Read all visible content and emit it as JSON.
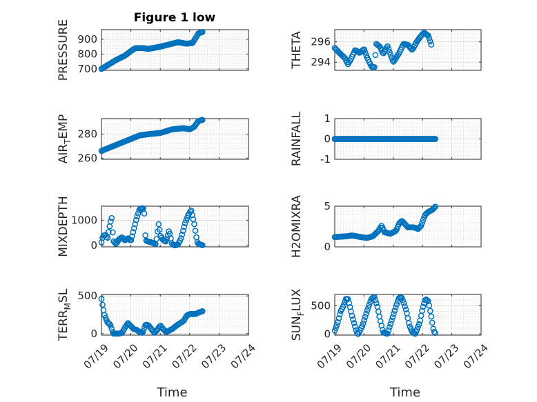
{
  "figure": {
    "title": "Figure 1 low"
  },
  "x_tick_labels": [
    "07/19",
    "07/20",
    "07/21",
    "07/22",
    "07/23",
    "07/24"
  ],
  "x_label": "Time",
  "marker_color": "#0072BD",
  "chart_data": [
    {
      "type": "scatter",
      "ylabel": "PRESSURE",
      "ylim": [
        690,
        965
      ],
      "yticks": [
        700,
        800,
        900
      ],
      "xlim": [
        0,
        5
      ],
      "keyframes": [
        [
          0,
          700
        ],
        [
          0.25,
          730
        ],
        [
          0.5,
          760
        ],
        [
          0.8,
          790
        ],
        [
          1.0,
          820
        ],
        [
          1.15,
          840
        ],
        [
          1.4,
          840
        ],
        [
          1.6,
          835
        ],
        [
          2.0,
          850
        ],
        [
          2.3,
          865
        ],
        [
          2.6,
          880
        ],
        [
          2.9,
          870
        ],
        [
          3.1,
          875
        ],
        [
          3.3,
          940
        ],
        [
          3.45,
          950
        ]
      ]
    },
    {
      "type": "scatter",
      "ylabel": "THETA",
      "ylim": [
        293.2,
        297.2
      ],
      "yticks": [
        294,
        296
      ],
      "xlim": [
        0,
        5
      ],
      "keyframes": [
        [
          0,
          295.4
        ],
        [
          0.2,
          294.8
        ],
        [
          0.35,
          294.4
        ],
        [
          0.45,
          293.8
        ],
        [
          0.55,
          294.3
        ],
        [
          0.7,
          295.2
        ],
        [
          0.85,
          294.9
        ],
        [
          1.0,
          295.3
        ],
        [
          1.1,
          294.5
        ],
        [
          1.25,
          293.6
        ],
        [
          1.35,
          293.4
        ],
        [
          1.42,
          295.8
        ],
        [
          1.55,
          295.5
        ],
        [
          1.65,
          294.8
        ],
        [
          1.8,
          295.6
        ],
        [
          1.9,
          294.8
        ],
        [
          2.0,
          294.0
        ],
        [
          2.2,
          294.9
        ],
        [
          2.35,
          295.8
        ],
        [
          2.5,
          295.7
        ],
        [
          2.65,
          295.2
        ],
        [
          2.8,
          296.0
        ],
        [
          2.95,
          296.6
        ],
        [
          3.05,
          296.9
        ],
        [
          3.2,
          296.6
        ],
        [
          3.3,
          295.7
        ]
      ]
    },
    {
      "type": "scatter",
      "ylabel": "AIR_TEMP",
      "ylim": [
        259,
        293
      ],
      "yticks": [
        260,
        280
      ],
      "xlim": [
        0,
        5
      ],
      "keyframes": [
        [
          0,
          266
        ],
        [
          0.3,
          269
        ],
        [
          0.7,
          273
        ],
        [
          1.0,
          276
        ],
        [
          1.3,
          279
        ],
        [
          1.6,
          280
        ],
        [
          2.0,
          281
        ],
        [
          2.4,
          284
        ],
        [
          2.8,
          285
        ],
        [
          3.0,
          284
        ],
        [
          3.15,
          286
        ],
        [
          3.3,
          291
        ],
        [
          3.45,
          292
        ]
      ]
    },
    {
      "type": "scatter",
      "ylabel": "RAINFALL",
      "ylim": [
        -1,
        1
      ],
      "yticks": [
        -1,
        0,
        1
      ],
      "xlim": [
        0,
        5
      ],
      "keyframes": [
        [
          0,
          0
        ],
        [
          3.45,
          0
        ]
      ]
    },
    {
      "type": "scatter",
      "ylabel": "MIXDEPTH",
      "ylim": [
        -60,
        1560
      ],
      "yticks": [
        0,
        1000
      ],
      "xlim": [
        0,
        5
      ],
      "keyframes": [
        [
          0,
          120
        ],
        [
          0.05,
          380
        ],
        [
          0.15,
          420
        ],
        [
          0.2,
          250
        ],
        [
          0.3,
          900
        ],
        [
          0.35,
          1100
        ],
        [
          0.4,
          180
        ],
        [
          0.5,
          50
        ],
        [
          0.6,
          250
        ],
        [
          0.7,
          320
        ],
        [
          0.8,
          200
        ],
        [
          0.9,
          280
        ],
        [
          1.0,
          180
        ],
        [
          1.05,
          400
        ],
        [
          1.2,
          1100
        ],
        [
          1.3,
          1450
        ],
        [
          1.4,
          1480
        ],
        [
          1.45,
          1450
        ],
        [
          1.5,
          200
        ],
        [
          1.6,
          150
        ],
        [
          1.75,
          100
        ],
        [
          1.85,
          50
        ],
        [
          1.95,
          900
        ],
        [
          2.0,
          400
        ],
        [
          2.1,
          200
        ],
        [
          2.2,
          150
        ],
        [
          2.3,
          600
        ],
        [
          2.4,
          50
        ],
        [
          2.5,
          0
        ],
        [
          2.6,
          30
        ],
        [
          2.7,
          250
        ],
        [
          2.85,
          900
        ],
        [
          2.95,
          1200
        ],
        [
          3.05,
          1400
        ],
        [
          3.15,
          900
        ],
        [
          3.25,
          150
        ],
        [
          3.3,
          60
        ],
        [
          3.45,
          0
        ]
      ]
    },
    {
      "type": "scatter",
      "ylabel": "H2OMIXRA",
      "ylim": [
        0,
        5
      ],
      "yticks": [
        0,
        5
      ],
      "xlim": [
        0,
        5
      ],
      "keyframes": [
        [
          0,
          1.2
        ],
        [
          0.4,
          1.3
        ],
        [
          0.6,
          1.4
        ],
        [
          0.9,
          1.2
        ],
        [
          1.1,
          1.1
        ],
        [
          1.3,
          1.3
        ],
        [
          1.5,
          2.0
        ],
        [
          1.6,
          2.6
        ],
        [
          1.7,
          1.8
        ],
        [
          1.9,
          1.6
        ],
        [
          2.1,
          2.0
        ],
        [
          2.2,
          2.9
        ],
        [
          2.3,
          3.2
        ],
        [
          2.5,
          2.4
        ],
        [
          2.7,
          2.4
        ],
        [
          2.85,
          2.2
        ],
        [
          2.95,
          2.6
        ],
        [
          3.05,
          3.6
        ],
        [
          3.1,
          4.0
        ],
        [
          3.2,
          4.3
        ],
        [
          3.35,
          4.6
        ],
        [
          3.45,
          5.0
        ]
      ]
    },
    {
      "type": "scatter",
      "ylabel": "TERR_MSL",
      "ylim": [
        -20,
        520
      ],
      "yticks": [
        0,
        500
      ],
      "xlim": [
        0,
        5
      ],
      "keyframes": [
        [
          0,
          460
        ],
        [
          0.05,
          350
        ],
        [
          0.1,
          250
        ],
        [
          0.2,
          150
        ],
        [
          0.3,
          120
        ],
        [
          0.35,
          60
        ],
        [
          0.4,
          0
        ],
        [
          0.5,
          0
        ],
        [
          0.6,
          0
        ],
        [
          0.7,
          10
        ],
        [
          0.8,
          80
        ],
        [
          0.9,
          140
        ],
        [
          1.0,
          100
        ],
        [
          1.1,
          60
        ],
        [
          1.2,
          50
        ],
        [
          1.3,
          20
        ],
        [
          1.4,
          10
        ],
        [
          1.5,
          120
        ],
        [
          1.6,
          110
        ],
        [
          1.7,
          60
        ],
        [
          1.8,
          10
        ],
        [
          1.9,
          50
        ],
        [
          2.0,
          110
        ],
        [
          2.1,
          60
        ],
        [
          2.2,
          20
        ],
        [
          2.4,
          60
        ],
        [
          2.6,
          120
        ],
        [
          2.8,
          170
        ],
        [
          2.9,
          240
        ],
        [
          3.0,
          260
        ],
        [
          3.2,
          260
        ],
        [
          3.3,
          280
        ],
        [
          3.45,
          300
        ]
      ]
    },
    {
      "type": "scatter",
      "ylabel": "SUN_FLUX",
      "ylim": [
        -20,
        700
      ],
      "yticks": [
        0,
        500
      ],
      "xlim": [
        0,
        5
      ],
      "keyframes": [
        [
          0,
          60
        ],
        [
          0.1,
          200
        ],
        [
          0.2,
          400
        ],
        [
          0.3,
          500
        ],
        [
          0.38,
          620
        ],
        [
          0.45,
          620
        ],
        [
          0.5,
          520
        ],
        [
          0.6,
          300
        ],
        [
          0.7,
          120
        ],
        [
          0.75,
          30
        ],
        [
          0.8,
          0
        ],
        [
          0.95,
          150
        ],
        [
          1.1,
          400
        ],
        [
          1.25,
          620
        ],
        [
          1.35,
          660
        ],
        [
          1.45,
          500
        ],
        [
          1.55,
          250
        ],
        [
          1.65,
          30
        ],
        [
          1.8,
          0
        ],
        [
          1.95,
          250
        ],
        [
          2.1,
          500
        ],
        [
          2.2,
          650
        ],
        [
          2.3,
          640
        ],
        [
          2.45,
          400
        ],
        [
          2.55,
          150
        ],
        [
          2.65,
          30
        ],
        [
          2.75,
          0
        ],
        [
          2.9,
          200
        ],
        [
          3.0,
          450
        ],
        [
          3.1,
          620
        ],
        [
          3.2,
          580
        ],
        [
          3.3,
          300
        ],
        [
          3.38,
          50
        ],
        [
          3.45,
          10
        ]
      ]
    }
  ]
}
